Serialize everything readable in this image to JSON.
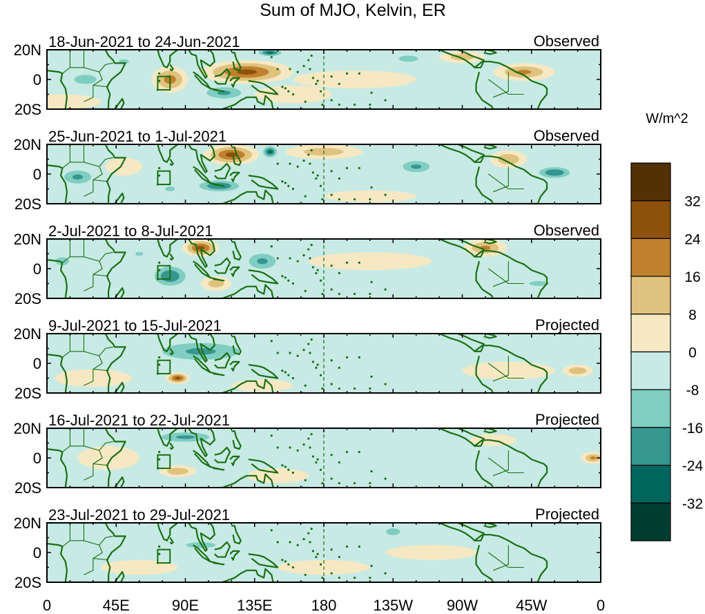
{
  "chart_data": {
    "type": "heatmap",
    "title": "Sum of MJO, Kelvin, ER",
    "units_label": "W/m^2",
    "x_ticks": [
      "0",
      "45E",
      "90E",
      "135E",
      "180",
      "135W",
      "90W",
      "45W",
      "0"
    ],
    "x_range_deg_east": [
      0,
      360
    ],
    "y_ticks": [
      "20N",
      "0",
      "20S"
    ],
    "y_range_deg": [
      -20,
      20
    ],
    "colorbar": {
      "labels": [
        "32",
        "24",
        "16",
        "8",
        "0",
        "-8",
        "-16",
        "-24",
        "-32"
      ],
      "levels": [
        32,
        24,
        16,
        8,
        0,
        -8,
        -16,
        -24,
        -32
      ],
      "colors": [
        "#543005",
        "#8c510a",
        "#bf812d",
        "#dfc27d",
        "#f6e8c3",
        "#c7eae5",
        "#80cdc1",
        "#35978f",
        "#01665e",
        "#003c30"
      ]
    },
    "panels": [
      {
        "date_range": "18-Jun-2021 to 24-Jun-2021",
        "status": "Observed",
        "features": [
          [
            80,
            0,
            12,
            9,
            20
          ],
          [
            130,
            5,
            30,
            8,
            26
          ],
          [
            115,
            -9,
            18,
            6,
            -18
          ],
          [
            25,
            0,
            14,
            6,
            -14
          ],
          [
            50,
            12,
            10,
            5,
            -10
          ],
          [
            235,
            14,
            12,
            4,
            -14
          ],
          [
            310,
            5,
            20,
            6,
            18
          ],
          [
            160,
            -10,
            25,
            6,
            6
          ],
          [
            200,
            0,
            40,
            6,
            4
          ],
          [
            10,
            -15,
            25,
            5,
            4
          ],
          [
            145,
            18,
            10,
            3,
            -26
          ],
          [
            270,
            15,
            15,
            4,
            14
          ]
        ]
      },
      {
        "date_range": "25-Jun-2021 to 1-Jul-2021",
        "status": "Observed",
        "features": [
          [
            120,
            13,
            18,
            7,
            26
          ],
          [
            145,
            15,
            6,
            5,
            -26
          ],
          [
            112,
            -8,
            18,
            5,
            -24
          ],
          [
            20,
            -2,
            14,
            7,
            -18
          ],
          [
            240,
            5,
            14,
            6,
            -18
          ],
          [
            330,
            1,
            14,
            5,
            -24
          ],
          [
            300,
            10,
            12,
            6,
            16
          ],
          [
            180,
            15,
            25,
            5,
            14
          ],
          [
            80,
            -10,
            10,
            5,
            -10
          ],
          [
            50,
            5,
            12,
            6,
            6
          ],
          [
            210,
            -15,
            30,
            4,
            6
          ]
        ]
      },
      {
        "date_range": "2-Jul-2021 to 8-Jul-2021",
        "status": "Observed",
        "features": [
          [
            100,
            14,
            12,
            6,
            26
          ],
          [
            80,
            -5,
            14,
            9,
            -24
          ],
          [
            140,
            5,
            14,
            8,
            -18
          ],
          [
            285,
            14,
            14,
            6,
            18
          ],
          [
            110,
            -10,
            10,
            5,
            14
          ],
          [
            60,
            10,
            8,
            4,
            -10
          ],
          [
            210,
            5,
            40,
            6,
            4
          ],
          [
            320,
            -10,
            20,
            5,
            -10
          ],
          [
            10,
            5,
            10,
            6,
            -12
          ]
        ]
      },
      {
        "date_range": "9-Jul-2021 to 15-Jul-2021",
        "status": "Projected",
        "features": [
          [
            100,
            8,
            40,
            9,
            -18
          ],
          [
            85,
            -10,
            8,
            4,
            26
          ],
          [
            345,
            -5,
            10,
            4,
            16
          ],
          [
            30,
            -10,
            25,
            6,
            6
          ],
          [
            200,
            10,
            50,
            6,
            -4
          ],
          [
            140,
            -15,
            20,
            4,
            8
          ],
          [
            300,
            -5,
            30,
            6,
            4
          ]
        ]
      },
      {
        "date_range": "16-Jul-2021 to 22-Jul-2021",
        "status": "Projected",
        "features": [
          [
            90,
            14,
            25,
            5,
            -18
          ],
          [
            85,
            -9,
            12,
            4,
            16
          ],
          [
            355,
            0,
            8,
            4,
            18
          ],
          [
            40,
            0,
            20,
            8,
            6
          ],
          [
            200,
            10,
            50,
            6,
            -4
          ],
          [
            150,
            -12,
            20,
            5,
            6
          ],
          [
            290,
            12,
            15,
            4,
            6
          ]
        ]
      },
      {
        "date_range": "23-Jul-2021 to 29-Jul-2021",
        "status": "Projected",
        "features": [
          [
            225,
            14,
            8,
            4,
            -16
          ],
          [
            100,
            5,
            30,
            6,
            -10
          ],
          [
            60,
            -10,
            25,
            5,
            6
          ],
          [
            180,
            -10,
            30,
            5,
            6
          ],
          [
            320,
            0,
            25,
            6,
            -6
          ],
          [
            20,
            5,
            12,
            6,
            -8
          ],
          [
            250,
            0,
            30,
            5,
            4
          ]
        ]
      }
    ]
  }
}
